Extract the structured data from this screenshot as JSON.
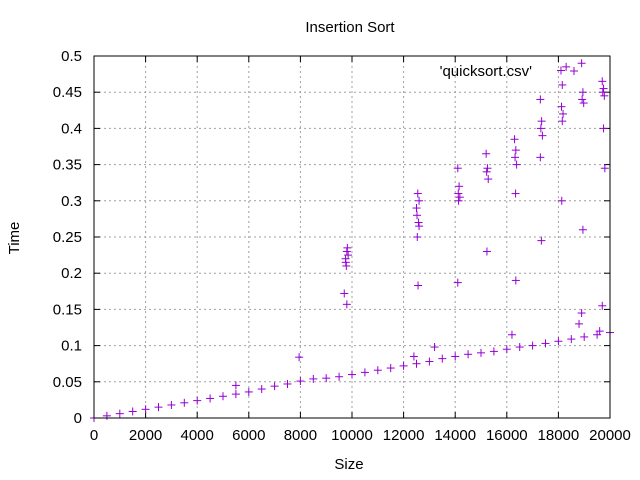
{
  "chart_data": {
    "type": "scatter",
    "title": "Insertion Sort",
    "xlabel": "Size",
    "ylabel": "Time",
    "xlim": [
      0,
      20000
    ],
    "ylim": [
      0,
      0.5
    ],
    "xticks": [
      0,
      2000,
      4000,
      6000,
      8000,
      10000,
      12000,
      14000,
      16000,
      18000,
      20000
    ],
    "yticks": [
      0,
      0.05,
      0.1,
      0.15,
      0.2,
      0.25,
      0.3,
      0.35,
      0.4,
      0.45,
      0.5
    ],
    "xtick_labels": [
      "0",
      "2000",
      "4000",
      "6000",
      "8000",
      "10000",
      "12000",
      "14000",
      "16000",
      "18000",
      "20000"
    ],
    "ytick_labels": [
      "0",
      "0.05",
      "0.1",
      "0.15",
      "0.2",
      "0.25",
      "0.3",
      "0.35",
      "0.4",
      "0.45",
      "0.5"
    ],
    "grid": true,
    "legend_position": "top-right",
    "marker": "plus",
    "color": "#9400d3",
    "series": [
      {
        "name": "'quicksort.csv'",
        "x": [
          0,
          500,
          1000,
          1500,
          2000,
          2500,
          3000,
          3500,
          4000,
          4500,
          5000,
          5500,
          6000,
          6500,
          7000,
          7500,
          8000,
          8500,
          9000,
          9500,
          10000,
          10500,
          11000,
          11500,
          12000,
          12500,
          13000,
          13500,
          14000,
          14500,
          15000,
          15500,
          16000,
          16500,
          17000,
          17500,
          18000,
          18500,
          19000,
          19500,
          20000,
          7950,
          9750,
          9800,
          9850,
          9760,
          9820,
          9780,
          9700,
          9800,
          12500,
          12550,
          12600,
          12520,
          12580,
          12530,
          12600,
          12560,
          14100,
          14150,
          14120,
          14180,
          14130,
          14100,
          15200,
          15250,
          15220,
          15280,
          15230,
          16300,
          16350,
          16320,
          16380,
          16340,
          16350,
          17300,
          17350,
          17320,
          17380,
          17300,
          17340,
          18100,
          18150,
          18120,
          18180,
          18150,
          18130,
          18300,
          18900,
          18950,
          18920,
          18980,
          18950,
          18900,
          19700,
          19750,
          19720,
          19780,
          19750,
          19800,
          19700,
          5500,
          12400,
          13200,
          16200,
          18800,
          19600
        ],
        "y": [
          0,
          0.003,
          0.006,
          0.009,
          0.012,
          0.015,
          0.018,
          0.021,
          0.024,
          0.027,
          0.03,
          0.033,
          0.036,
          0.04,
          0.044,
          0.047,
          0.051,
          0.054,
          0.055,
          0.057,
          0.06,
          0.063,
          0.066,
          0.069,
          0.072,
          0.075,
          0.078,
          0.082,
          0.085,
          0.088,
          0.09,
          0.092,
          0.095,
          0.098,
          0.1,
          0.103,
          0.106,
          0.109,
          0.112,
          0.115,
          0.118,
          0.084,
          0.22,
          0.23,
          0.225,
          0.215,
          0.235,
          0.21,
          0.172,
          0.157,
          0.29,
          0.31,
          0.3,
          0.28,
          0.27,
          0.25,
          0.265,
          0.183,
          0.345,
          0.32,
          0.31,
          0.305,
          0.3,
          0.187,
          0.365,
          0.345,
          0.34,
          0.33,
          0.23,
          0.385,
          0.37,
          0.36,
          0.35,
          0.31,
          0.19,
          0.44,
          0.41,
          0.4,
          0.39,
          0.36,
          0.245,
          0.48,
          0.46,
          0.43,
          0.42,
          0.41,
          0.3,
          0.485,
          0.49,
          0.45,
          0.44,
          0.435,
          0.26,
          0.145,
          0.465,
          0.455,
          0.45,
          0.445,
          0.4,
          0.345,
          0.155,
          0.045,
          0.085,
          0.098,
          0.115,
          0.13,
          0.12
        ]
      }
    ]
  }
}
